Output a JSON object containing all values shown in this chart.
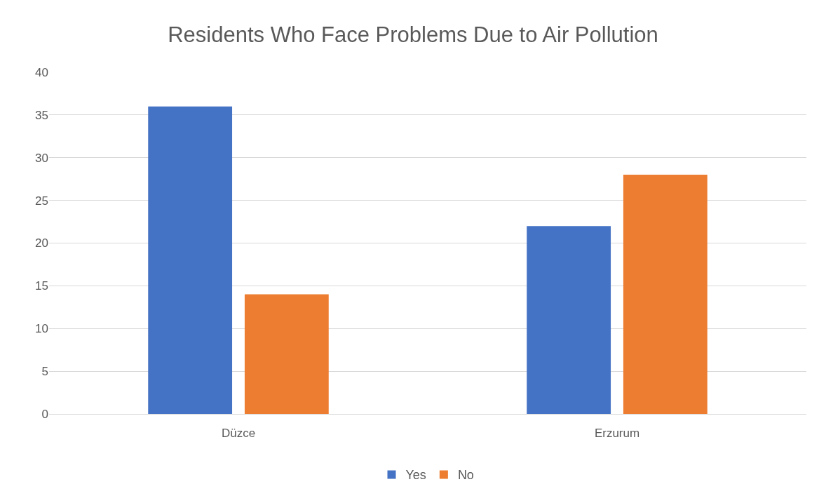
{
  "chart_data": {
    "type": "bar",
    "title": "Residents Who Face Problems Due to Air Pollution",
    "categories": [
      "Düzce",
      "Erzurum"
    ],
    "series": [
      {
        "name": "Yes",
        "color": "#4472c4",
        "values": [
          36,
          22
        ]
      },
      {
        "name": "No",
        "color": "#ed7d31",
        "values": [
          14,
          28
        ]
      }
    ],
    "ylim": [
      0,
      40
    ],
    "yticks": [
      0,
      5,
      10,
      15,
      20,
      25,
      30,
      35,
      40
    ],
    "grid": "y",
    "legend": "bottom"
  }
}
